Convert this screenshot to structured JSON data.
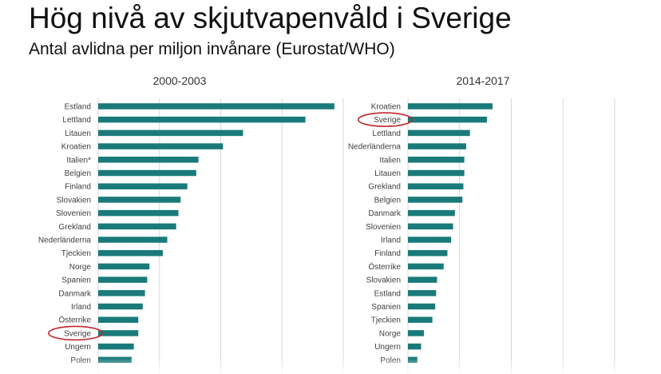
{
  "page": {
    "title": "Hög nivå av skjutvapenvåld i Sverige",
    "subtitle": "Antal avlidna per miljon invånare (Eurostat/WHO)"
  },
  "colors": {
    "bar": "#1a7a7a",
    "highlight": "#c0272d",
    "grid": "#d9d9d9"
  },
  "chart_data": [
    {
      "type": "bar",
      "orientation": "horizontal",
      "title": "2000-2003",
      "categories": [
        "Estland",
        "Lettland",
        "Litauen",
        "Kroatien",
        "Italien*",
        "Belgien",
        "Finland",
        "Slovakien",
        "Slovenien",
        "Grekland",
        "Nederländerna",
        "Tjeckien",
        "Norge",
        "Spanien",
        "Danmark",
        "Irland",
        "Österrike",
        "Sverige",
        "Ungern",
        "Polen"
      ],
      "values": [
        10.6,
        9.3,
        6.5,
        5.6,
        4.5,
        4.4,
        4.0,
        3.7,
        3.6,
        3.5,
        3.1,
        2.9,
        2.3,
        2.2,
        2.1,
        2.0,
        1.8,
        1.8,
        1.6,
        1.5
      ],
      "highlight": "Sverige",
      "grid": true,
      "xlim": [
        0,
        11
      ]
    },
    {
      "type": "bar",
      "orientation": "horizontal",
      "title": "2014-2017",
      "categories": [
        "Kroatien",
        "Sverige",
        "Lettland",
        "Nederländerna",
        "Italien",
        "Litauen",
        "Grekland",
        "Belgien",
        "Danmark",
        "Slovenien",
        "Irland",
        "Finland",
        "Österrike",
        "Slovakien",
        "Estland",
        "Spanien",
        "Tjeckien",
        "Norge",
        "Ungern",
        "Polen"
      ],
      "values": [
        4.5,
        4.2,
        3.3,
        3.1,
        3.0,
        3.0,
        2.95,
        2.9,
        2.5,
        2.4,
        2.3,
        2.1,
        1.9,
        1.55,
        1.5,
        1.45,
        1.3,
        0.85,
        0.7,
        0.5
      ],
      "highlight": "Sverige",
      "grid": true,
      "xlim": [
        0,
        11
      ]
    }
  ]
}
